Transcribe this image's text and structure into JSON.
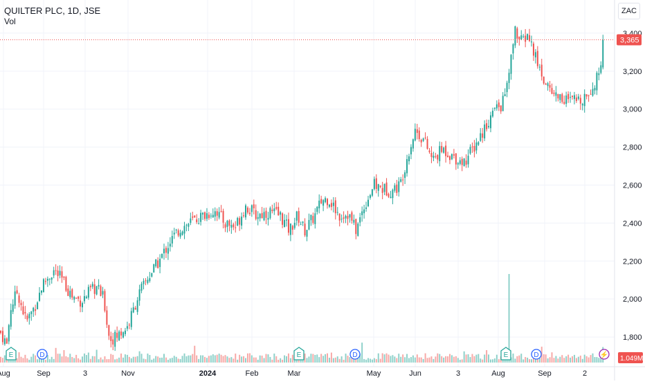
{
  "chart_data": {
    "type": "candlestick",
    "title": "QUILTER PLC, 1D, JSE",
    "subtitle": "Vol",
    "currency": "ZAC",
    "ylim": [
      1680,
      3520
    ],
    "y_ticks": [
      1800,
      2000,
      2200,
      2400,
      2600,
      2800,
      3000,
      3200,
      3400
    ],
    "y_tick_labels": [
      "1,800",
      "2,000",
      "2,200",
      "2,400",
      "2,600",
      "2,800",
      "3,000",
      "3,200",
      "3,400"
    ],
    "x_tick_labels": [
      "Aug",
      "Sep",
      "3",
      "Nov",
      "2024",
      "Feb",
      "Mar",
      "May",
      "Jun",
      "3",
      "Aug",
      "Sep",
      "2"
    ],
    "x_tick_positions": [
      5,
      63,
      123,
      185,
      300,
      364,
      425,
      540,
      600,
      662,
      720,
      787,
      845
    ],
    "last_price": 3365,
    "last_price_label": "3,365",
    "volume_last_label": "1.049M",
    "events": [
      {
        "type": "earnings",
        "label": "E",
        "pos": 16
      },
      {
        "type": "dividend",
        "label": "D",
        "pos": 61
      },
      {
        "type": "earnings",
        "label": "E",
        "pos": 432
      },
      {
        "type": "dividend",
        "label": "D",
        "pos": 513
      },
      {
        "type": "earnings",
        "label": "E",
        "pos": 731
      },
      {
        "type": "dividend",
        "label": "D",
        "pos": 775
      },
      {
        "type": "upcoming",
        "label": "⚡",
        "pos": 873
      }
    ],
    "close_anchors": [
      [
        0,
        1830
      ],
      [
        10,
        1760
      ],
      [
        15,
        1950
      ],
      [
        25,
        2040
      ],
      [
        38,
        1880
      ],
      [
        50,
        1960
      ],
      [
        62,
        2080
      ],
      [
        78,
        2150
      ],
      [
        90,
        2100
      ],
      [
        105,
        2010
      ],
      [
        118,
        1990
      ],
      [
        130,
        2040
      ],
      [
        140,
        2060
      ],
      [
        150,
        2000
      ],
      [
        158,
        1790
      ],
      [
        168,
        1800
      ],
      [
        185,
        1860
      ],
      [
        200,
        2020
      ],
      [
        215,
        2120
      ],
      [
        230,
        2200
      ],
      [
        245,
        2300
      ],
      [
        260,
        2370
      ],
      [
        278,
        2410
      ],
      [
        300,
        2450
      ],
      [
        312,
        2470
      ],
      [
        325,
        2400
      ],
      [
        340,
        2380
      ],
      [
        355,
        2490
      ],
      [
        370,
        2440
      ],
      [
        390,
        2460
      ],
      [
        405,
        2440
      ],
      [
        418,
        2360
      ],
      [
        430,
        2440
      ],
      [
        440,
        2360
      ],
      [
        455,
        2440
      ],
      [
        465,
        2520
      ],
      [
        475,
        2530
      ],
      [
        490,
        2440
      ],
      [
        503,
        2450
      ],
      [
        515,
        2360
      ],
      [
        525,
        2480
      ],
      [
        540,
        2600
      ],
      [
        553,
        2580
      ],
      [
        565,
        2570
      ],
      [
        578,
        2600
      ],
      [
        590,
        2770
      ],
      [
        600,
        2890
      ],
      [
        612,
        2840
      ],
      [
        625,
        2730
      ],
      [
        640,
        2790
      ],
      [
        655,
        2750
      ],
      [
        670,
        2720
      ],
      [
        685,
        2800
      ],
      [
        700,
        2900
      ],
      [
        715,
        3000
      ],
      [
        725,
        3020
      ],
      [
        735,
        3160
      ],
      [
        744,
        3420
      ],
      [
        752,
        3350
      ],
      [
        763,
        3390
      ],
      [
        775,
        3260
      ],
      [
        785,
        3160
      ],
      [
        800,
        3080
      ],
      [
        812,
        3060
      ],
      [
        825,
        3040
      ],
      [
        838,
        3050
      ],
      [
        850,
        3090
      ],
      [
        862,
        3150
      ],
      [
        868,
        3260
      ],
      [
        874,
        3365
      ]
    ],
    "volume_bars_note": "per-candle volume, spikes at earnings",
    "volume_spikes": [
      {
        "pos": 735,
        "value": 8.0
      },
      {
        "pos": 524,
        "value": 1.8
      },
      {
        "pos": 870,
        "value": 1.4
      }
    ]
  },
  "colors": {
    "up": "#26a69a",
    "down": "#ef5350",
    "up_volume": "#8fd1ca",
    "down_volume": "#f7a9a7",
    "grid": "#f0f3fa",
    "axis_text": "#131722",
    "price_line": "#ef5350",
    "earnings_badge": "#26a69a",
    "dividend_badge": "#2962ff",
    "upcoming_badge": "#9c27b0"
  }
}
